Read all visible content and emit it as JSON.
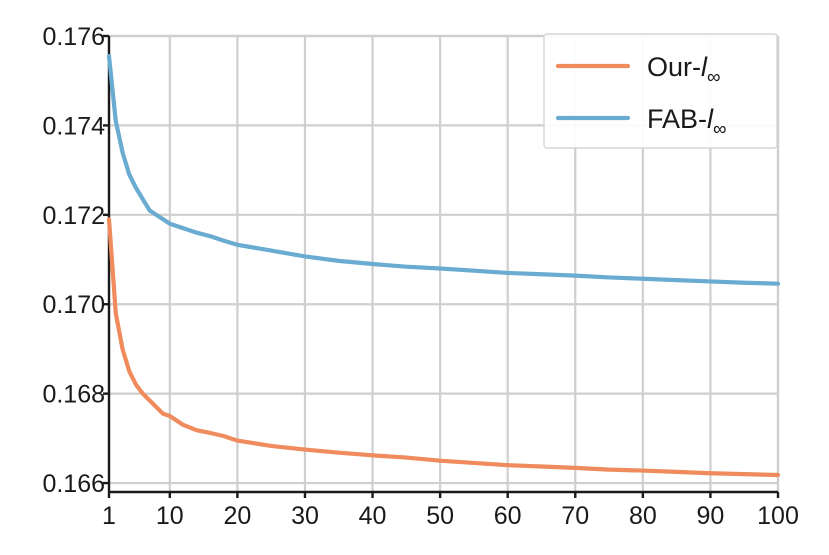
{
  "chart_data": {
    "type": "line",
    "title": "",
    "xlabel": "",
    "ylabel": "",
    "xlim": [
      1,
      100
    ],
    "ylim": [
      0.1658,
      0.176
    ],
    "grid": true,
    "legend_position": "top-right",
    "x_ticks": [
      1,
      10,
      20,
      30,
      40,
      50,
      60,
      70,
      80,
      90,
      100
    ],
    "x_tick_labels": [
      "1",
      "10",
      "20",
      "30",
      "40",
      "50",
      "60",
      "70",
      "80",
      "90",
      "100"
    ],
    "y_ticks": [
      0.166,
      0.168,
      0.17,
      0.172,
      0.174,
      0.176
    ],
    "y_tick_labels": [
      "0.166",
      "0.168",
      "0.170",
      "0.172",
      "0.174",
      "0.176"
    ],
    "x": [
      1,
      2,
      3,
      4,
      5,
      6,
      7,
      8,
      9,
      10,
      12,
      14,
      16,
      18,
      20,
      25,
      30,
      35,
      40,
      45,
      50,
      55,
      60,
      65,
      70,
      75,
      80,
      85,
      90,
      95,
      100
    ],
    "series": [
      {
        "name_prefix": "Our-",
        "name_sub": "∞",
        "name_italic": "l",
        "color": "#ef8b5c",
        "values": [
          0.1719,
          0.1698,
          0.169,
          0.1685,
          0.1682,
          0.168,
          0.16785,
          0.1677,
          0.16755,
          0.1675,
          0.1673,
          0.16718,
          0.16712,
          0.16705,
          0.16695,
          0.16683,
          0.16675,
          0.16668,
          0.16662,
          0.16657,
          0.1665,
          0.16645,
          0.1664,
          0.16637,
          0.16634,
          0.1663,
          0.16628,
          0.16625,
          0.16622,
          0.1662,
          0.16618
        ]
      },
      {
        "name_prefix": "FAB-",
        "name_sub": "∞",
        "name_italic": "l",
        "color": "#6aabd2",
        "values": [
          0.17555,
          0.1741,
          0.1734,
          0.1729,
          0.1726,
          0.17235,
          0.1721,
          0.172,
          0.1719,
          0.1718,
          0.1717,
          0.1716,
          0.17152,
          0.17142,
          0.17133,
          0.1712,
          0.17107,
          0.17097,
          0.1709,
          0.17084,
          0.1708,
          0.17075,
          0.1707,
          0.17067,
          0.17064,
          0.1706,
          0.17057,
          0.17054,
          0.17051,
          0.17048,
          0.17046
        ]
      }
    ]
  }
}
